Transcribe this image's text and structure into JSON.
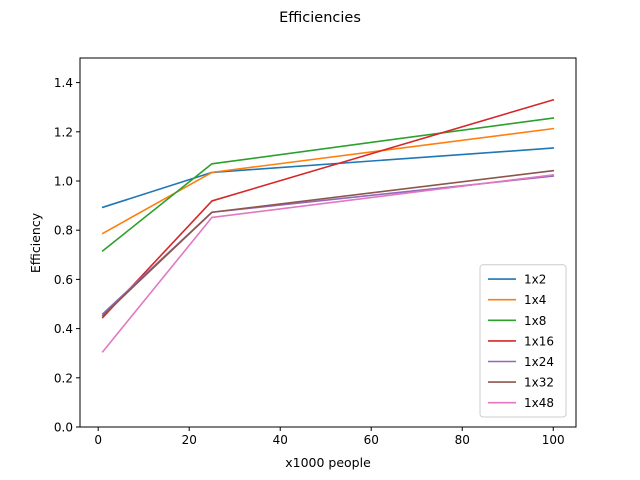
{
  "chart_data": {
    "type": "line",
    "title": "Efficiencies",
    "xlabel": "x1000 people",
    "ylabel": "Efficiency",
    "x": [
      1,
      25,
      100
    ],
    "xlim": [
      -4.0,
      105.0
    ],
    "ylim": [
      0.0,
      1.5
    ],
    "xticks": [
      0,
      20,
      40,
      60,
      80,
      100
    ],
    "yticks": [
      0.0,
      0.2,
      0.4,
      0.6,
      0.8,
      1.0,
      1.2,
      1.4
    ],
    "xtick_labels": [
      "0",
      "20",
      "40",
      "60",
      "80",
      "100"
    ],
    "ytick_labels": [
      "0.0",
      "0.2",
      "0.4",
      "0.6",
      "0.8",
      "1.0",
      "1.2",
      "1.4"
    ],
    "grid": false,
    "legend_position": "lower-right",
    "series": [
      {
        "name": "1x2",
        "color": "#1f77b4",
        "values": [
          0.893,
          1.035,
          1.134
        ]
      },
      {
        "name": "1x4",
        "color": "#ff7f0e",
        "values": [
          0.787,
          1.035,
          1.213
        ]
      },
      {
        "name": "1x8",
        "color": "#2ca02c",
        "values": [
          0.716,
          1.07,
          1.256
        ]
      },
      {
        "name": "1x16",
        "color": "#d62728",
        "values": [
          0.445,
          0.919,
          1.33
        ]
      },
      {
        "name": "1x24",
        "color": "#9467bd",
        "values": [
          0.46,
          0.873,
          1.02
        ]
      },
      {
        "name": "1x32",
        "color": "#8c564b",
        "values": [
          0.452,
          0.873,
          1.042
        ]
      },
      {
        "name": "1x48",
        "color": "#e377c2",
        "values": [
          0.306,
          0.852,
          1.025
        ]
      }
    ]
  }
}
